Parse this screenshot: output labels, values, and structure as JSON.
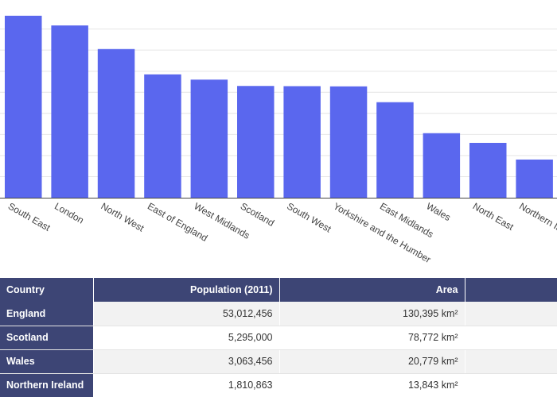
{
  "colors": {
    "bar": "#5a67ee",
    "grid": "#e6e6e6",
    "table_header": "#3d4575"
  },
  "chart_data": {
    "type": "bar",
    "title": "",
    "xlabel": "",
    "ylabel": "",
    "categories": [
      "South East",
      "London",
      "North West",
      "East of England",
      "West Midlands",
      "Scotland",
      "South West",
      "Yorkshire and the Humber",
      "East Midlands",
      "Wales",
      "North East",
      "Northern Ireland"
    ],
    "values": [
      8.63,
      8.17,
      7.05,
      5.85,
      5.6,
      5.3,
      5.29,
      5.28,
      4.53,
      3.06,
      2.6,
      1.81
    ],
    "ylim": [
      0,
      9
    ],
    "grid": true
  },
  "table": {
    "columns": [
      "Country",
      "Population (2011)",
      "Area",
      ""
    ],
    "rows": [
      {
        "country": "England",
        "population": "53,012,456",
        "area": "130,395 km²"
      },
      {
        "country": "Scotland",
        "population": "5,295,000",
        "area": "78,772 km²"
      },
      {
        "country": "Wales",
        "population": "3,063,456",
        "area": "20,779 km²"
      },
      {
        "country": "Northern Ireland",
        "population": "1,810,863",
        "area": "13,843 km²"
      }
    ]
  }
}
